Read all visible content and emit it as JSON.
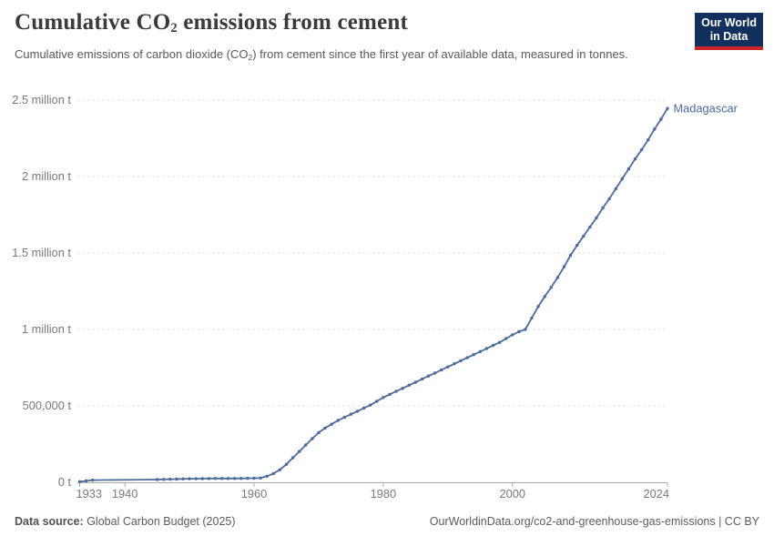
{
  "header": {
    "title": {
      "pre": "Cumulative CO",
      "sub": "2",
      "post": " emissions from cement"
    },
    "subtitle": {
      "pre": "Cumulative emissions of carbon dioxide (CO",
      "sub": "2",
      "post": ") from cement since the first year of available data, measured in tonnes."
    },
    "logo": {
      "line1": "Our World",
      "line2": "in Data",
      "bg_color": "#12305d",
      "stripe_color": "#cb2626"
    }
  },
  "chart_data": {
    "type": "line",
    "title": "Cumulative CO2 emissions from cement",
    "entity_label": "Madagascar",
    "unit": "t",
    "xlim": [
      1933,
      2024
    ],
    "ylim": [
      0,
      2500000
    ],
    "grid": "horizontal-dashed",
    "legend_position": "end-of-line-label",
    "line_color": "#4C6A9C",
    "axis_color": "#a8a8a8",
    "grid_color": "#dcdcdc",
    "tick_label_color": "#7a7a7a",
    "yticks": [
      {
        "value": 0,
        "label": "0 t"
      },
      {
        "value": 500000,
        "label": "500,000 t"
      },
      {
        "value": 1000000,
        "label": "1 million t"
      },
      {
        "value": 1500000,
        "label": "1.5 million t"
      },
      {
        "value": 2000000,
        "label": "2 million t"
      },
      {
        "value": 2500000,
        "label": "2.5 million t"
      }
    ],
    "xticks": [
      1933,
      1940,
      1960,
      1980,
      2000,
      2024
    ],
    "series": [
      {
        "name": "Madagascar",
        "points": [
          [
            1933,
            4000
          ],
          [
            1934,
            9000
          ],
          [
            1935,
            14000
          ],
          [
            1945,
            18000
          ],
          [
            1946,
            19000
          ],
          [
            1947,
            20000
          ],
          [
            1948,
            21000
          ],
          [
            1949,
            22000
          ],
          [
            1950,
            23000
          ],
          [
            1951,
            23500
          ],
          [
            1952,
            24000
          ],
          [
            1953,
            24500
          ],
          [
            1954,
            25000
          ],
          [
            1955,
            25000
          ],
          [
            1956,
            25000
          ],
          [
            1957,
            25000
          ],
          [
            1958,
            25500
          ],
          [
            1959,
            26000
          ],
          [
            1960,
            26500
          ],
          [
            1961,
            28000
          ],
          [
            1962,
            40000
          ],
          [
            1963,
            57000
          ],
          [
            1964,
            82000
          ],
          [
            1965,
            118000
          ],
          [
            1966,
            160000
          ],
          [
            1967,
            202000
          ],
          [
            1968,
            244000
          ],
          [
            1969,
            286000
          ],
          [
            1970,
            325000
          ],
          [
            1971,
            355000
          ],
          [
            1972,
            380000
          ],
          [
            1973,
            405000
          ],
          [
            1974,
            425000
          ],
          [
            1975,
            445000
          ],
          [
            1976,
            465000
          ],
          [
            1977,
            485000
          ],
          [
            1978,
            505000
          ],
          [
            1979,
            530000
          ],
          [
            1980,
            555000
          ],
          [
            1981,
            575000
          ],
          [
            1982,
            595000
          ],
          [
            1983,
            615000
          ],
          [
            1984,
            635000
          ],
          [
            1985,
            655000
          ],
          [
            1986,
            675000
          ],
          [
            1987,
            695000
          ],
          [
            1988,
            715000
          ],
          [
            1989,
            735000
          ],
          [
            1990,
            755000
          ],
          [
            1991,
            775000
          ],
          [
            1992,
            795000
          ],
          [
            1993,
            815000
          ],
          [
            1994,
            835000
          ],
          [
            1995,
            855000
          ],
          [
            1996,
            875000
          ],
          [
            1997,
            895000
          ],
          [
            1998,
            915000
          ],
          [
            1999,
            940000
          ],
          [
            2000,
            965000
          ],
          [
            2001,
            985000
          ],
          [
            2002,
            1000000
          ],
          [
            2003,
            1075000
          ],
          [
            2004,
            1150000
          ],
          [
            2005,
            1215000
          ],
          [
            2006,
            1275000
          ],
          [
            2007,
            1340000
          ],
          [
            2008,
            1410000
          ],
          [
            2009,
            1485000
          ],
          [
            2010,
            1550000
          ],
          [
            2011,
            1610000
          ],
          [
            2012,
            1670000
          ],
          [
            2013,
            1730000
          ],
          [
            2014,
            1795000
          ],
          [
            2015,
            1855000
          ],
          [
            2016,
            1920000
          ],
          [
            2017,
            1985000
          ],
          [
            2018,
            2050000
          ],
          [
            2019,
            2115000
          ],
          [
            2020,
            2175000
          ],
          [
            2021,
            2240000
          ],
          [
            2022,
            2310000
          ],
          [
            2023,
            2375000
          ],
          [
            2024,
            2445000
          ]
        ]
      }
    ]
  },
  "footer": {
    "source_label": "Data source:",
    "source_value": " Global Carbon Budget (2025)",
    "credit": "OurWorldinData.org/co2-and-greenhouse-gas-emissions | CC BY"
  }
}
